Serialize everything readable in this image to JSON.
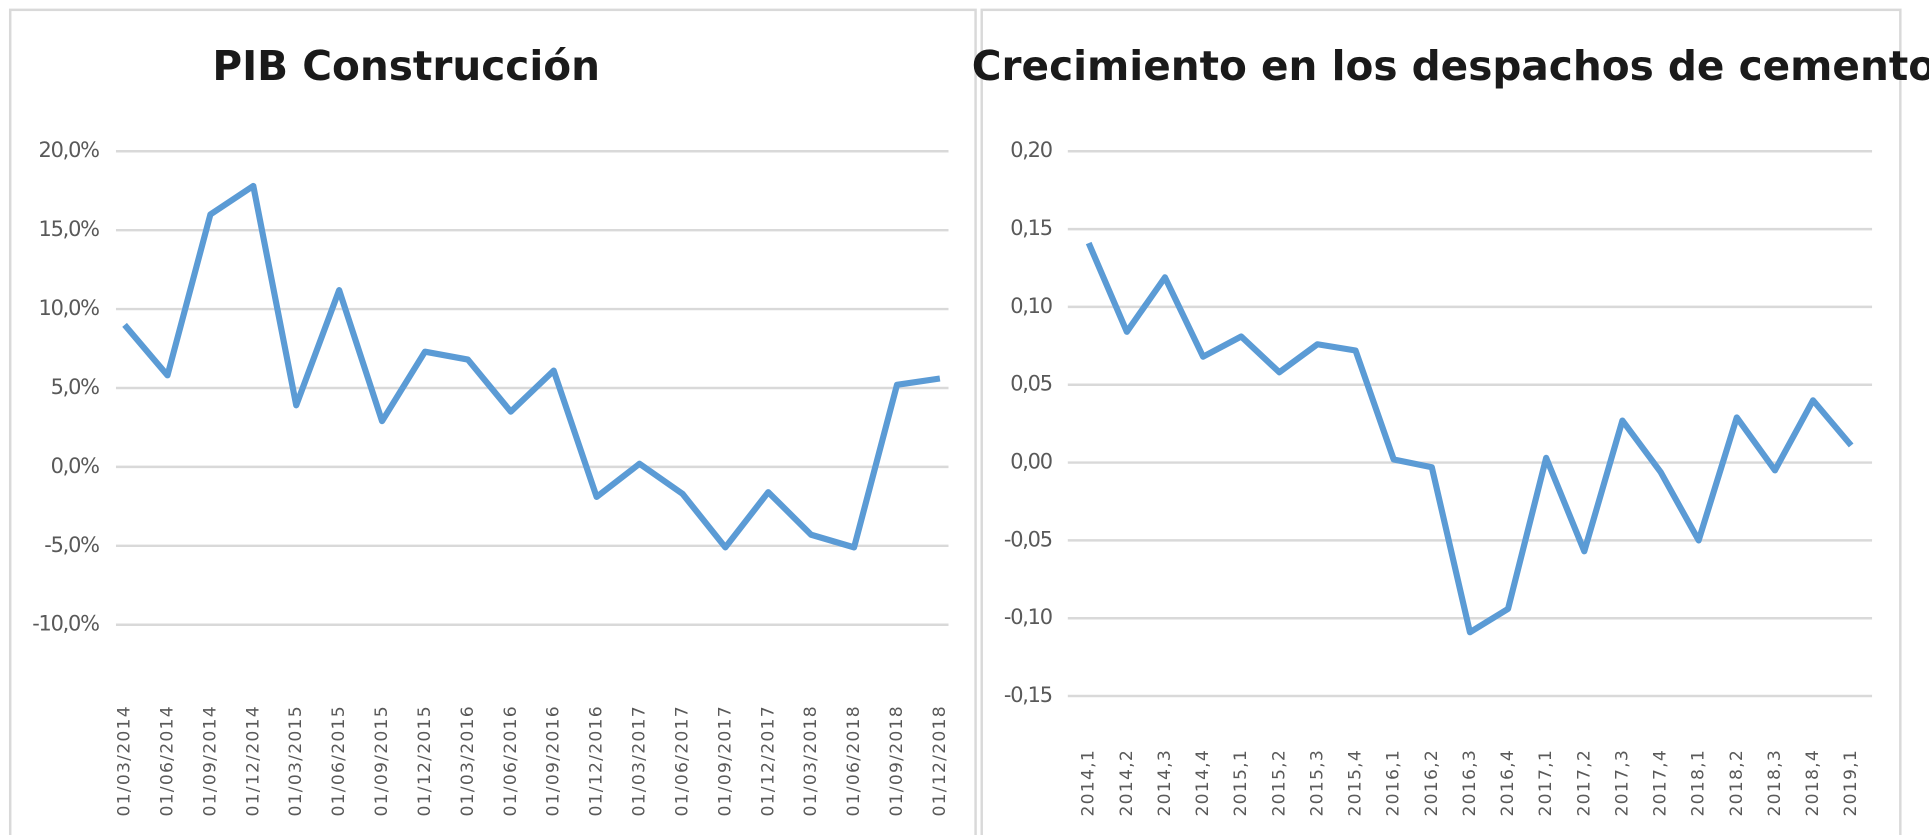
{
  "chart_data": [
    {
      "type": "line",
      "title": "PIB Construcción",
      "categories": [
        "01/03/2014",
        "01/06/2014",
        "01/09/2014",
        "01/12/2014",
        "01/03/2015",
        "01/06/2015",
        "01/09/2015",
        "01/12/2015",
        "01/03/2016",
        "01/06/2016",
        "01/09/2016",
        "01/12/2016",
        "01/03/2017",
        "01/06/2017",
        "01/09/2017",
        "01/12/2017",
        "01/03/2018",
        "01/06/2018",
        "01/09/2018",
        "01/12/2018"
      ],
      "values": [
        9.0,
        5.8,
        16.0,
        17.8,
        3.9,
        11.2,
        2.9,
        7.3,
        6.8,
        3.5,
        6.1,
        -1.9,
        0.2,
        -1.7,
        -5.1,
        -1.6,
        -4.3,
        -5.1,
        5.2,
        5.6
      ],
      "color": "#5b9bd5",
      "ylim": [
        -10,
        20
      ],
      "yticks": [
        {
          "value": -10,
          "label": "-10,0%"
        },
        {
          "value": -5,
          "label": "-5,0%"
        },
        {
          "value": 0,
          "label": "0,0%"
        },
        {
          "value": 5,
          "label": "5,0%"
        },
        {
          "value": 10,
          "label": "10,0%"
        },
        {
          "value": 15,
          "label": "15,0%"
        },
        {
          "value": 20,
          "label": "20,0%"
        }
      ],
      "grid": true
    },
    {
      "type": "line",
      "title": "Crecimiento en los despachos de cemento",
      "categories": [
        "2014,1",
        "2014,2",
        "2014,3",
        "2014,4",
        "2015,1",
        "2015,2",
        "2015,3",
        "2015,4",
        "2016,1",
        "2016,2",
        "2016,3",
        "2016,4",
        "2017,1",
        "2017,2",
        "2017,3",
        "2017,4",
        "2018,1",
        "2018,2",
        "2018,3",
        "2018,4",
        "2019,1"
      ],
      "values": [
        0.141,
        0.084,
        0.119,
        0.068,
        0.081,
        0.058,
        0.076,
        0.072,
        0.002,
        -0.003,
        -0.109,
        -0.094,
        0.003,
        -0.057,
        0.027,
        -0.006,
        -0.05,
        0.029,
        -0.005,
        0.04,
        0.011
      ],
      "color": "#5b9bd5",
      "ylim": [
        -0.15,
        0.2
      ],
      "yticks": [
        {
          "value": -0.15,
          "label": "-0,15"
        },
        {
          "value": -0.1,
          "label": "-0,10"
        },
        {
          "value": -0.05,
          "label": "-0,05"
        },
        {
          "value": 0,
          "label": "0,00"
        },
        {
          "value": 0.05,
          "label": "0,05"
        },
        {
          "value": 0.1,
          "label": "0,10"
        },
        {
          "value": 0.15,
          "label": "0,15"
        },
        {
          "value": 0.2,
          "label": "0,20"
        }
      ],
      "grid": true
    }
  ]
}
